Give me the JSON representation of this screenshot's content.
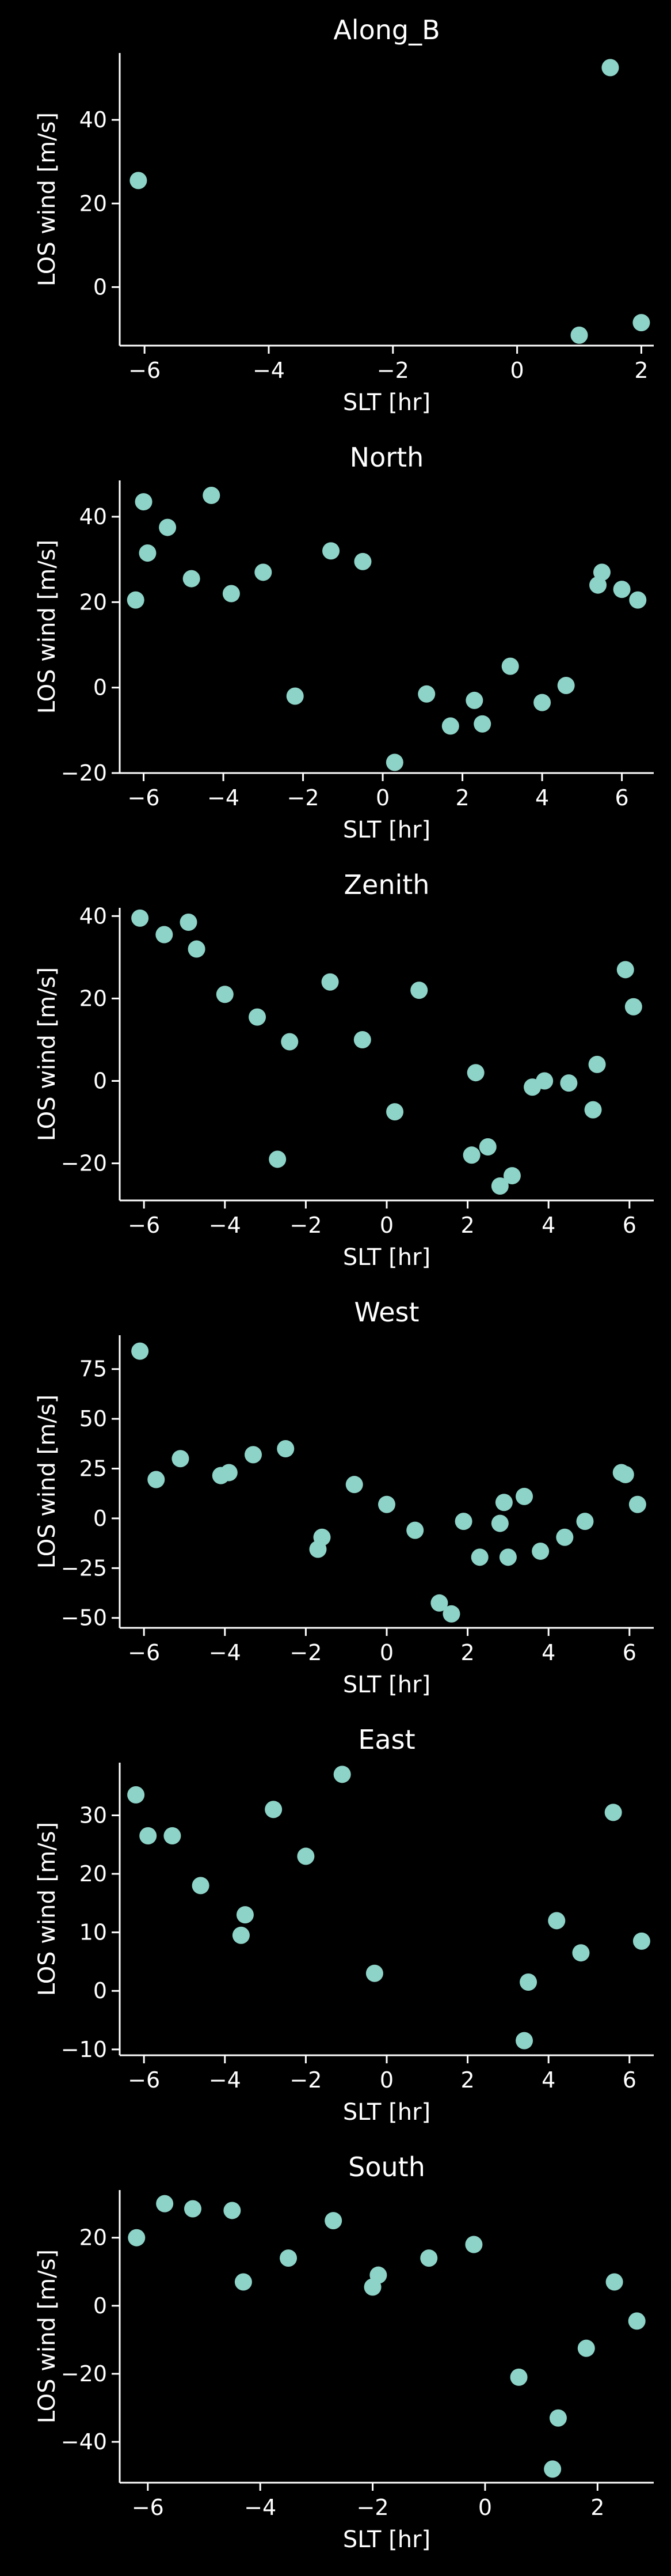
{
  "style": {
    "background": "#000000",
    "foreground": "#ffffff",
    "marker_color": "#8dd3c7"
  },
  "chart_data": [
    {
      "type": "scatter",
      "title": "Along_B",
      "xlabel": "SLT [hr]",
      "ylabel": "LOS wind [m/s]",
      "xlim": [
        -6.4,
        2.2
      ],
      "ylim": [
        -14,
        56
      ],
      "xticks": [
        -6,
        -4,
        -2,
        0,
        2
      ],
      "yticks": [
        0,
        20,
        40
      ],
      "grid": false,
      "legend": "none",
      "x": [
        -6.1,
        1.5,
        1.0,
        2.0
      ],
      "y": [
        25.5,
        52.5,
        -11.5,
        -8.5
      ]
    },
    {
      "type": "scatter",
      "title": "North",
      "xlabel": "SLT [hr]",
      "ylabel": "LOS wind [m/s]",
      "xlim": [
        -6.6,
        6.8
      ],
      "ylim": [
        -20,
        48.5
      ],
      "xticks": [
        -6,
        -4,
        -2,
        0,
        2,
        4,
        6
      ],
      "yticks": [
        -20,
        0,
        20,
        40
      ],
      "grid": false,
      "legend": "none",
      "x": [
        -6.2,
        -6.0,
        -5.9,
        -5.4,
        -4.8,
        -4.3,
        -3.8,
        -3.0,
        -2.2,
        -1.3,
        -0.5,
        0.3,
        1.1,
        1.7,
        2.3,
        2.5,
        3.2,
        4.0,
        4.6,
        5.4,
        5.5,
        6.0,
        6.4
      ],
      "y": [
        20.5,
        43.5,
        31.5,
        37.5,
        25.5,
        45.0,
        22.0,
        27.0,
        -2.0,
        32.0,
        29.5,
        -17.5,
        -1.5,
        -9.0,
        -3.0,
        -8.5,
        5.0,
        -3.5,
        0.5,
        24.0,
        27.0,
        23.0,
        20.5
      ]
    },
    {
      "type": "scatter",
      "title": "Zenith",
      "xlabel": "SLT [hr]",
      "ylabel": "LOS wind [m/s]",
      "xlim": [
        -6.6,
        6.6
      ],
      "ylim": [
        -29,
        42
      ],
      "xticks": [
        -6,
        -4,
        -2,
        0,
        2,
        4,
        6
      ],
      "yticks": [
        -20,
        0,
        20,
        40
      ],
      "grid": false,
      "legend": "none",
      "x": [
        -6.1,
        -5.5,
        -4.9,
        -4.7,
        -4.0,
        -3.2,
        -2.7,
        -2.4,
        -1.4,
        -0.6,
        0.2,
        0.8,
        2.1,
        2.2,
        2.5,
        2.8,
        3.1,
        3.6,
        3.9,
        4.5,
        5.1,
        5.2,
        5.9,
        6.1
      ],
      "y": [
        39.5,
        35.5,
        38.5,
        32.0,
        21.0,
        15.5,
        -19.0,
        9.5,
        24.0,
        10.0,
        -7.5,
        22.0,
        -18.0,
        2.0,
        -16.0,
        -25.5,
        -23.0,
        -1.5,
        0.0,
        -0.5,
        -7.0,
        4.0,
        27.0,
        18.0
      ]
    },
    {
      "type": "scatter",
      "title": "West",
      "xlabel": "SLT [hr]",
      "ylabel": "LOS wind [m/s]",
      "xlim": [
        -6.6,
        6.6
      ],
      "ylim": [
        -55,
        92
      ],
      "xticks": [
        -6,
        -4,
        -2,
        0,
        2,
        4,
        6
      ],
      "yticks": [
        -50,
        -25,
        0,
        25,
        50,
        75
      ],
      "grid": false,
      "legend": "none",
      "x": [
        -6.1,
        -5.7,
        -5.1,
        -4.1,
        -3.9,
        -3.3,
        -2.5,
        -1.7,
        -1.6,
        -0.8,
        0.0,
        0.7,
        1.3,
        1.6,
        1.9,
        2.3,
        2.8,
        2.9,
        3.0,
        3.4,
        3.8,
        4.4,
        4.9,
        5.8,
        5.9,
        6.2
      ],
      "y": [
        84.0,
        19.5,
        30.0,
        21.5,
        23.0,
        32.0,
        35.0,
        -15.5,
        -9.5,
        17.0,
        7.0,
        -6.0,
        -42.5,
        -48.0,
        -1.5,
        -19.5,
        -2.5,
        8.0,
        -19.5,
        11.0,
        -16.5,
        -9.5,
        -1.5,
        23.0,
        22.0,
        7.0
      ]
    },
    {
      "type": "scatter",
      "title": "East",
      "xlabel": "SLT [hr]",
      "ylabel": "LOS wind [m/s]",
      "xlim": [
        -6.6,
        6.6
      ],
      "ylim": [
        -11,
        39
      ],
      "xticks": [
        -6,
        -4,
        -2,
        0,
        2,
        4,
        6
      ],
      "yticks": [
        -10,
        0,
        10,
        20,
        30
      ],
      "grid": false,
      "legend": "none",
      "x": [
        -6.2,
        -5.9,
        -5.3,
        -4.6,
        -3.6,
        -3.5,
        -2.8,
        -2.0,
        -1.1,
        -0.3,
        3.4,
        3.5,
        4.2,
        4.8,
        5.6,
        6.3
      ],
      "y": [
        33.5,
        26.5,
        26.5,
        18.0,
        9.5,
        13.0,
        31.0,
        23.0,
        37.0,
        3.0,
        -8.5,
        1.5,
        12.0,
        6.5,
        30.5,
        8.5
      ]
    },
    {
      "type": "scatter",
      "title": "South",
      "xlabel": "SLT [hr]",
      "ylabel": "LOS wind [m/s]",
      "xlim": [
        -6.5,
        3.0
      ],
      "ylim": [
        -52,
        34
      ],
      "xticks": [
        -6,
        -4,
        -2,
        0,
        2
      ],
      "yticks": [
        -40,
        -20,
        0,
        20
      ],
      "grid": false,
      "legend": "none",
      "x": [
        -6.2,
        -5.7,
        -5.2,
        -4.5,
        -4.3,
        -3.5,
        -2.7,
        -2.0,
        -1.9,
        -1.0,
        -0.2,
        0.6,
        1.2,
        1.3,
        1.8,
        2.3,
        2.7
      ],
      "y": [
        20.0,
        30.0,
        28.5,
        28.0,
        7.0,
        14.0,
        25.0,
        5.5,
        9.0,
        14.0,
        18.0,
        -21.0,
        -48.0,
        -33.0,
        -12.5,
        7.0,
        -4.5
      ]
    }
  ]
}
